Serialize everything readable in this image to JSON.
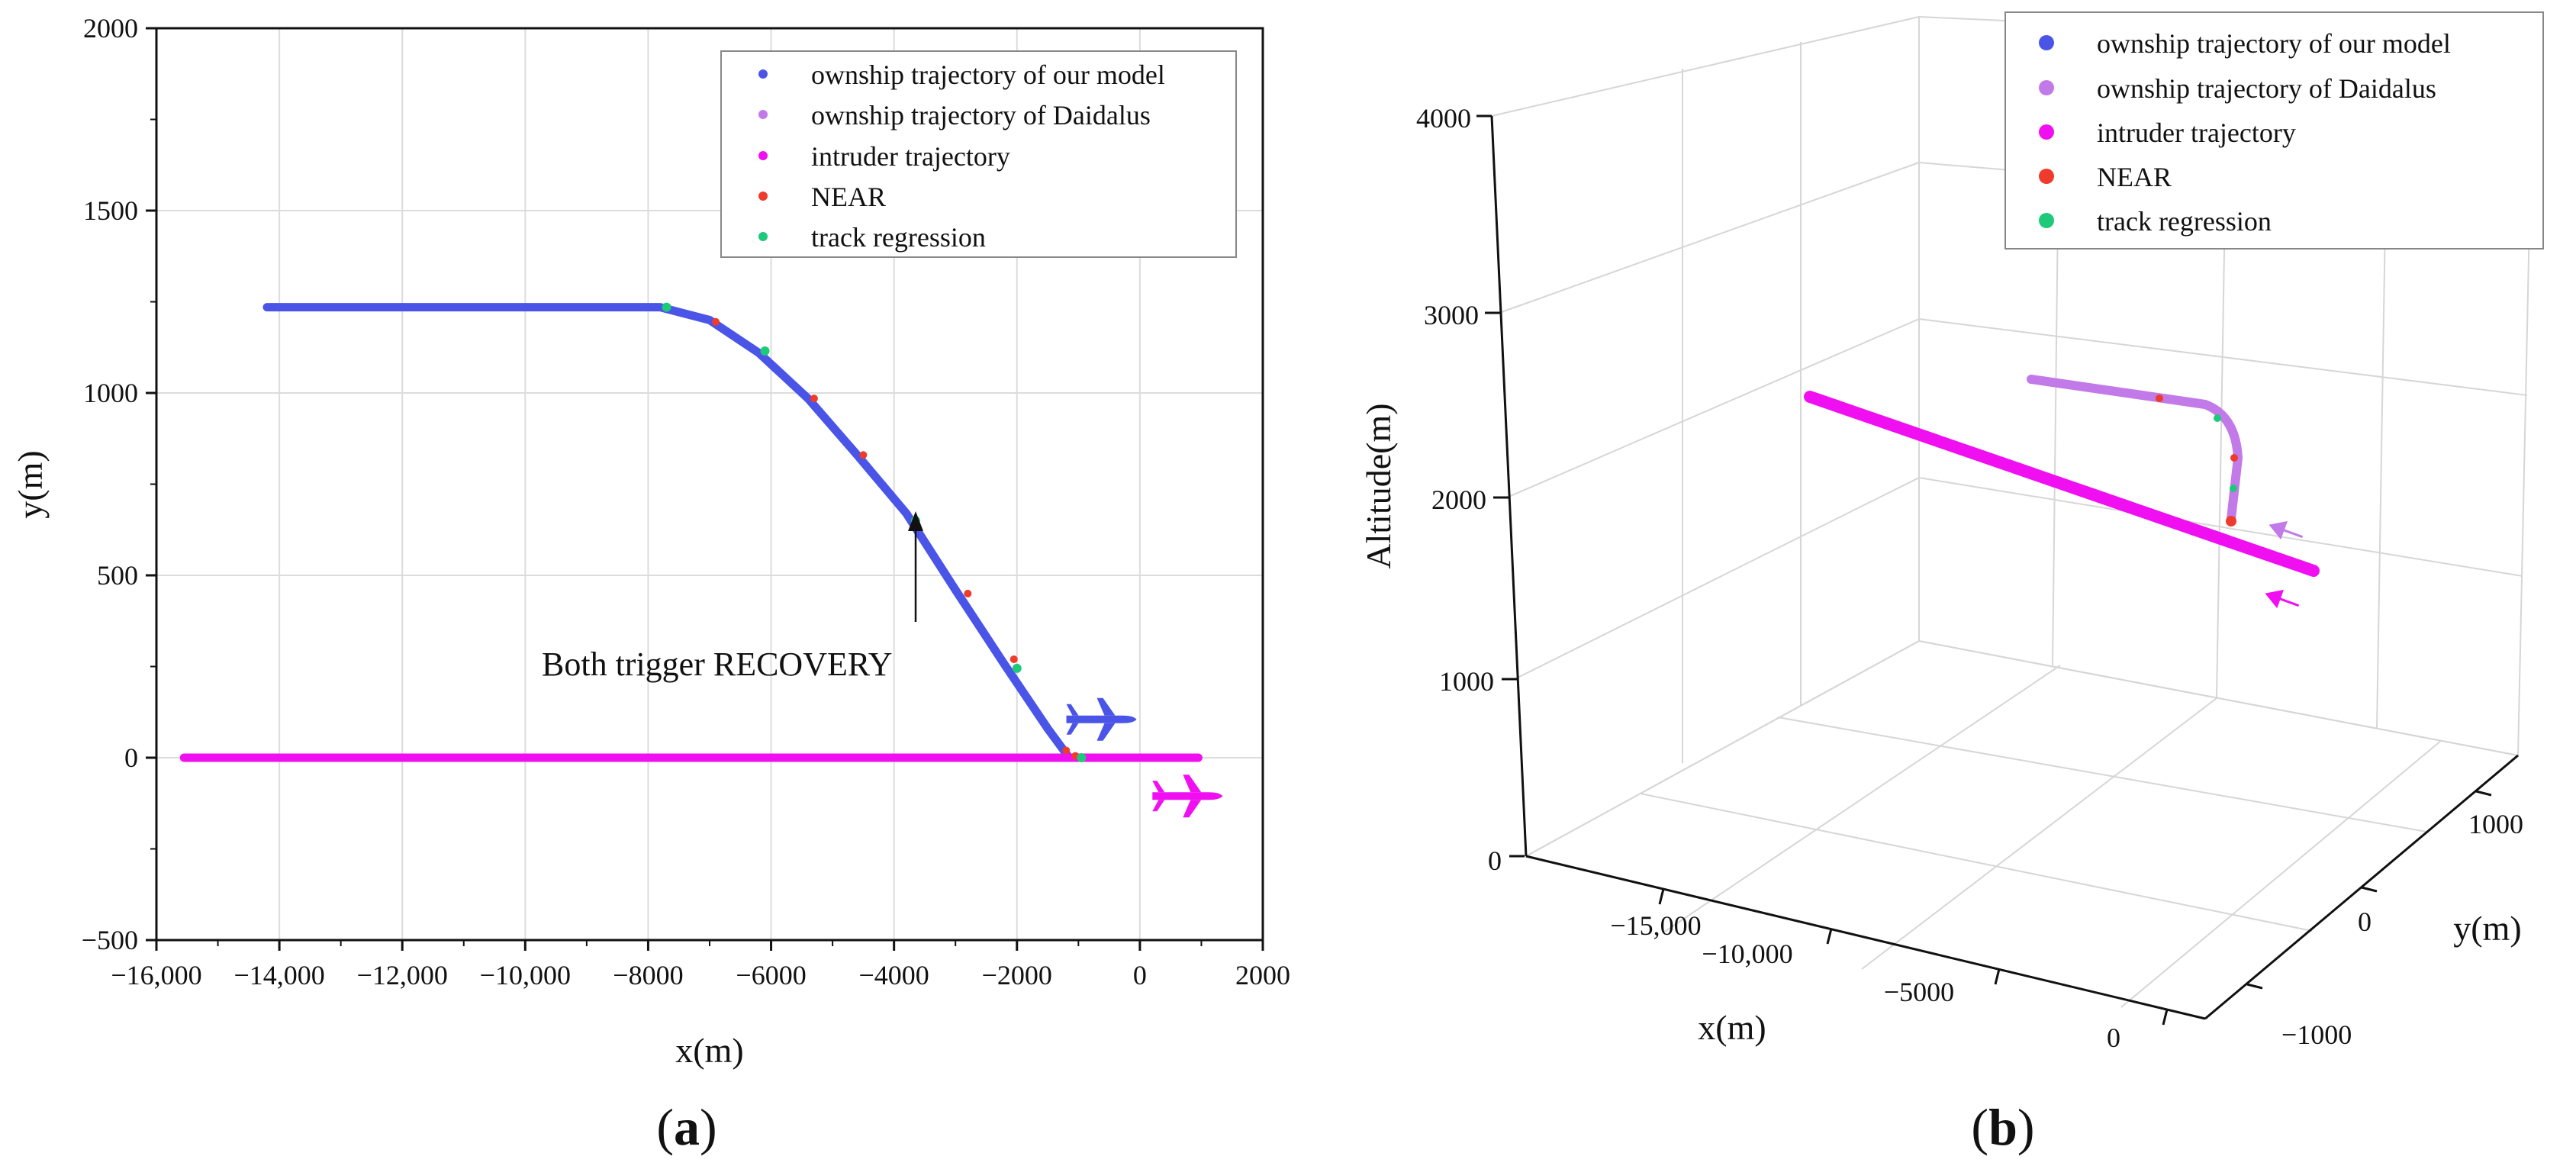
{
  "colors": {
    "ownship": "#4a55e8",
    "daidalus": "#c27ae8",
    "intruder": "#f00ff0",
    "near": "#ef3b2c",
    "regression": "#1ec97a",
    "grid": "#dcdcdc",
    "axis": "#111111"
  },
  "chart_data": [
    {
      "type": "scatter",
      "panel": "(a)",
      "panel_open": "(",
      "panel_letter": "a",
      "panel_close": ")",
      "xlabel": "x(m)",
      "ylabel": "y(m)",
      "xlim": [
        -16000,
        2000
      ],
      "ylim": [
        -500,
        2000
      ],
      "xticks": [
        -16000,
        -14000,
        -12000,
        -10000,
        -8000,
        -6000,
        -4000,
        -2000,
        0,
        2000
      ],
      "xtick_labels": [
        "−16,000",
        "−14,000",
        "−12,000",
        "−10,000",
        "−8000",
        "−6000",
        "−4000",
        "−2000",
        "0",
        "2000"
      ],
      "yticks": [
        -500,
        0,
        500,
        1000,
        1500,
        2000
      ],
      "ytick_labels": [
        "−500",
        "0",
        "500",
        "1000",
        "1500",
        "2000"
      ],
      "grid": true,
      "legend_position": "top-right",
      "legend": [
        "ownship trajectory of our model",
        "ownship trajectory of Daidalus",
        "intruder trajectory",
        "NEAR",
        "track regression"
      ],
      "annotation": {
        "text": "Both trigger RECOVERY",
        "x": -3600,
        "y": 650
      },
      "series": [
        {
          "name": "ownship trajectory of our model",
          "color_key": "ownship",
          "x": [
            -14200,
            -7800,
            -7000,
            -6200,
            -5400,
            -4600,
            -3800,
            -3000,
            -2200,
            -1500,
            -1150
          ],
          "y": [
            1235,
            1235,
            1200,
            1110,
            985,
            830,
            670,
            460,
            255,
            80,
            0
          ]
        },
        {
          "name": "intruder trajectory",
          "color_key": "intruder",
          "x": [
            -15550,
            950
          ],
          "y": [
            0,
            0
          ]
        }
      ],
      "near_points": {
        "x": [
          -6900,
          -5300,
          -4500,
          -2800,
          -2050,
          -1200,
          -1050
        ],
        "y": [
          1195,
          985,
          830,
          450,
          270,
          20,
          5
        ]
      },
      "regression_points": {
        "x": [
          -7700,
          -6100,
          -3650,
          -2000,
          -950
        ],
        "y": [
          1235,
          1115,
          650,
          245,
          0
        ]
      },
      "aircraft_markers": [
        {
          "name": "ownship",
          "x": -650,
          "y": 105,
          "color_key": "ownship"
        },
        {
          "name": "intruder",
          "x": 750,
          "y": -105,
          "color_key": "intruder"
        }
      ]
    },
    {
      "type": "scatter3d",
      "panel": "(b)",
      "panel_open": "(",
      "panel_letter": "b",
      "panel_close": ")",
      "xlabel": "x(m)",
      "ylabel": "y(m)",
      "zlabel": "Altitude(m)",
      "xlim": [
        -18000,
        1000
      ],
      "ylim": [
        -1500,
        1500
      ],
      "zlim": [
        0,
        4000
      ],
      "xtick_labels": [
        "−15,000",
        "−10,000",
        "−5000",
        "0"
      ],
      "ytick_labels": [
        "−1000",
        "0",
        "1000"
      ],
      "ztick_labels": [
        "0",
        "1000",
        "2000",
        "3000",
        "4000"
      ],
      "legend_position": "top-right",
      "legend": [
        "ownship trajectory of our model",
        "ownship trajectory of Daidalus",
        "intruder trajectory",
        "NEAR",
        "track regression"
      ],
      "series": [
        {
          "name": "intruder trajectory",
          "color_key": "intruder"
        },
        {
          "name": "ownship trajectory of Daidalus",
          "color_key": "daidalus"
        },
        {
          "name": "ownship trajectory of our model",
          "color_key": "ownship"
        }
      ]
    }
  ]
}
